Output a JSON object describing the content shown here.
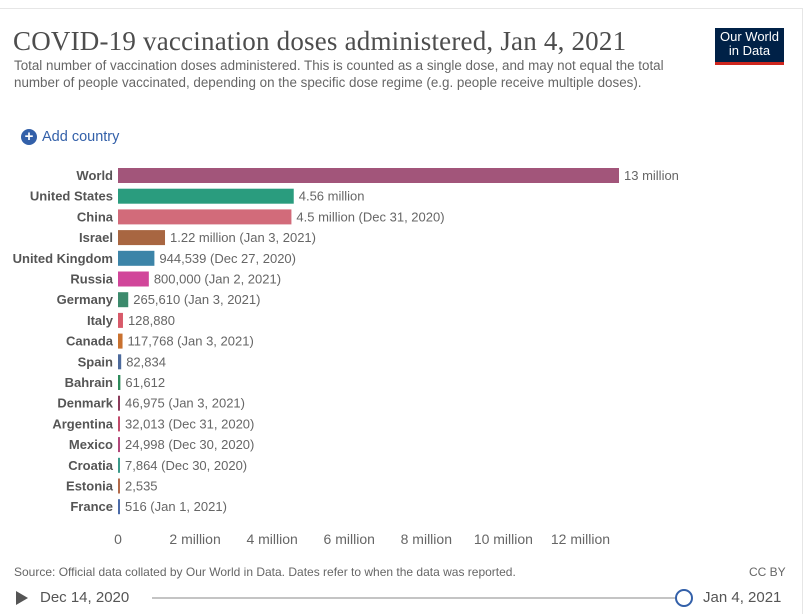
{
  "header": {
    "title": "COVID-19 vaccination doses administered, Jan 4, 2021",
    "subtitle": "Total number of vaccination doses administered. This is counted as a single dose, and may not equal the total number of people vaccinated, depending on the specific dose regime (e.g. people receive multiple doses).",
    "logo_line1": "Our World",
    "logo_line2": "in Data"
  },
  "controls": {
    "add_country": "Add country"
  },
  "footer": {
    "source": "Source: Official data collated by Our World in Data. Dates refer to when the data was reported.",
    "license": "CC BY"
  },
  "timeline": {
    "start": "Dec 14, 2020",
    "end": "Jan 4, 2021",
    "position": 1.0
  },
  "colors": {
    "accent": "#3360a9",
    "logo_bg": "#002147",
    "logo_bar": "#ce261e"
  },
  "chart_data": {
    "type": "bar",
    "orientation": "horizontal",
    "title": "COVID-19 vaccination doses administered, Jan 4, 2021",
    "xlim": [
      0,
      13000000
    ],
    "xticks": [
      {
        "value": 0,
        "label": "0"
      },
      {
        "value": 2000000,
        "label": "2 million"
      },
      {
        "value": 4000000,
        "label": "4 million"
      },
      {
        "value": 6000000,
        "label": "6 million"
      },
      {
        "value": 8000000,
        "label": "8 million"
      },
      {
        "value": 10000000,
        "label": "10 million"
      },
      {
        "value": 12000000,
        "label": "12 million"
      }
    ],
    "grid": false,
    "bars": [
      {
        "category": "World",
        "value": 13000000,
        "label": "13 million",
        "color": "#a2557a"
      },
      {
        "category": "United States",
        "value": 4560000,
        "label": "4.56 million",
        "color": "#2a9c7e"
      },
      {
        "category": "China",
        "value": 4500000,
        "label": "4.5 million (Dec 31, 2020)",
        "color": "#d26b7a"
      },
      {
        "category": "Israel",
        "value": 1220000,
        "label": "1.22 million (Jan 3, 2021)",
        "color": "#a86641"
      },
      {
        "category": "United Kingdom",
        "value": 944539,
        "label": "944,539 (Dec 27, 2020)",
        "color": "#3c84a8"
      },
      {
        "category": "Russia",
        "value": 800000,
        "label": "800,000 (Jan 2, 2021)",
        "color": "#d1469a"
      },
      {
        "category": "Germany",
        "value": 265610,
        "label": "265,610 (Jan 3, 2021)",
        "color": "#3c8a6c"
      },
      {
        "category": "Italy",
        "value": 128880,
        "label": "128,880",
        "color": "#d85a6a"
      },
      {
        "category": "Canada",
        "value": 117768,
        "label": "117,768 (Jan 3, 2021)",
        "color": "#c9712f"
      },
      {
        "category": "Spain",
        "value": 82834,
        "label": "82,834",
        "color": "#4c6a9c"
      },
      {
        "category": "Bahrain",
        "value": 61612,
        "label": "61,612",
        "color": "#2c8a5a"
      },
      {
        "category": "Denmark",
        "value": 46975,
        "label": "46,975 (Jan 3, 2021)",
        "color": "#8a3a5a"
      },
      {
        "category": "Argentina",
        "value": 32013,
        "label": "32,013 (Dec 31, 2020)",
        "color": "#c24a6a"
      },
      {
        "category": "Mexico",
        "value": 24998,
        "label": "24,998 (Dec 30, 2020)",
        "color": "#b2477a"
      },
      {
        "category": "Croatia",
        "value": 7864,
        "label": "7,864 (Dec 30, 2020)",
        "color": "#3a9a8a"
      },
      {
        "category": "Estonia",
        "value": 2535,
        "label": "2,535",
        "color": "#b26a4a"
      },
      {
        "category": "France",
        "value": 516,
        "label": "516 (Jan 1, 2021)",
        "color": "#4a6aa8"
      }
    ]
  }
}
